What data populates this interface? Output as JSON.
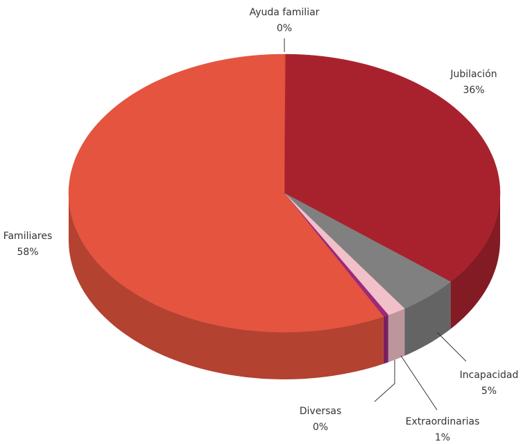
{
  "chart_data": {
    "type": "pie",
    "categories": [
      "Ayuda familiar",
      "Jubilación",
      "Incapacidad",
      "Extraordinarias",
      "Diversas",
      "Familiares"
    ],
    "values": [
      0.1,
      35.9,
      4.6,
      1.4,
      0.4,
      57.6
    ],
    "value_labels": [
      "0%",
      "36%",
      "5%",
      "1%",
      "0%",
      "58%"
    ],
    "colors": [
      "#d9473a",
      "#a8222e",
      "#808080",
      "#f2c0c8",
      "#9b2a7a",
      "#e5543f"
    ]
  }
}
